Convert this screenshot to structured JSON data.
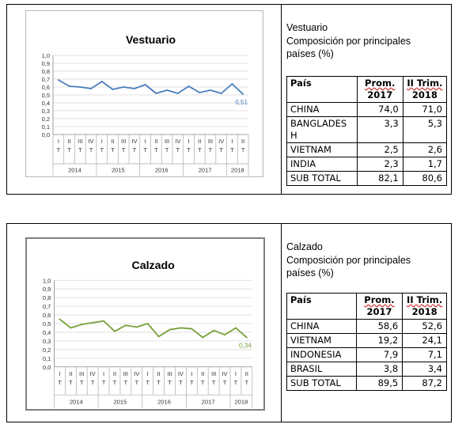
{
  "panels": [
    {
      "info": {
        "line1": "Vestuario",
        "line2": "Composición por principales",
        "line3": "países (%)"
      },
      "table": {
        "headers": [
          "País",
          "Prom. 2017",
          "II Trim. 2018"
        ],
        "header_parts": [
          [
            "País"
          ],
          [
            "Prom.",
            "2017"
          ],
          [
            "II Trim.",
            "2018"
          ]
        ],
        "rows": [
          [
            "CHINA",
            "74,0",
            "71,0"
          ],
          [
            "BANGLADESH",
            "3,3",
            "5,3"
          ],
          [
            "VIETNAM",
            "2,5",
            "2,6"
          ],
          [
            "INDIA",
            "2,3",
            "1,7"
          ],
          [
            "SUB TOTAL",
            "82,1",
            "80,6"
          ]
        ],
        "row_display": [
          [
            "CHINA"
          ],
          [
            "BANGLADES",
            "H"
          ],
          [
            "VIETNAM"
          ],
          [
            "INDIA"
          ],
          [
            "SUB TOTAL"
          ]
        ]
      }
    },
    {
      "info": {
        "line1": "Calzado",
        "line2": "Composición por principales",
        "line3": "países (%)"
      },
      "table": {
        "headers": [
          "País",
          "Prom. 2017",
          "II Trim. 2018"
        ],
        "header_parts": [
          [
            "País"
          ],
          [
            "Prom.",
            "2017"
          ],
          [
            "II Trim.",
            "2018"
          ]
        ],
        "rows": [
          [
            "CHINA",
            "58,6",
            "52,6"
          ],
          [
            "VIETNAM",
            "19,2",
            "24,1"
          ],
          [
            "INDONESIA",
            "7,9",
            "7,1"
          ],
          [
            "BRASIL",
            "3,8",
            "3,4"
          ],
          [
            "SUB TOTAL",
            "89,5",
            "87,2"
          ]
        ],
        "row_display": [
          [
            "CHINA"
          ],
          [
            "VIETNAM"
          ],
          [
            "INDONESIA"
          ],
          [
            "BRASIL"
          ],
          [
            "SUB TOTAL"
          ]
        ]
      }
    }
  ],
  "chart_data": [
    {
      "type": "line",
      "title": "Vestuario",
      "color": "#4a7ebb",
      "ylim": [
        0,
        1
      ],
      "yticks": [
        "0,0",
        "0,1",
        "0,2",
        "0,3",
        "0,4",
        "0,5",
        "0,6",
        "0,7",
        "0,8",
        "0,9",
        "1,0"
      ],
      "quarter_labels": [
        [
          "I",
          "T"
        ],
        [
          "II",
          "T"
        ],
        [
          "III",
          "T"
        ],
        [
          "IV",
          "T"
        ],
        [
          "I",
          "T"
        ],
        [
          "II",
          "T"
        ],
        [
          "III",
          "T"
        ],
        [
          "IV",
          "T"
        ],
        [
          "I",
          "T"
        ],
        [
          "II",
          "T"
        ],
        [
          "III",
          "T"
        ],
        [
          "IV",
          "T"
        ],
        [
          "I",
          "T"
        ],
        [
          "II",
          "T"
        ],
        [
          "III",
          "T"
        ],
        [
          "IV",
          "T"
        ],
        [
          "I",
          "T"
        ],
        [
          "II",
          "T"
        ]
      ],
      "years": [
        {
          "label": "2014",
          "count": 4
        },
        {
          "label": "2015",
          "count": 4
        },
        {
          "label": "2016",
          "count": 4
        },
        {
          "label": "2017",
          "count": 4
        },
        {
          "label": "2018",
          "count": 2
        }
      ],
      "values": [
        0.69,
        0.61,
        0.6,
        0.58,
        0.67,
        0.57,
        0.6,
        0.58,
        0.63,
        0.52,
        0.56,
        0.52,
        0.61,
        0.53,
        0.56,
        0.52,
        0.64,
        0.51
      ],
      "last_label": "0,51",
      "grid": true
    },
    {
      "type": "line",
      "title": "Calzado",
      "color": "#77a13a",
      "ylim": [
        0,
        1
      ],
      "yticks": [
        "0,0",
        "0,1",
        "0,2",
        "0,3",
        "0,4",
        "0,5",
        "0,6",
        "0,7",
        "0,8",
        "0,9",
        "1,0"
      ],
      "quarter_labels": [
        [
          "I",
          "T"
        ],
        [
          "II",
          "T"
        ],
        [
          "III",
          "T"
        ],
        [
          "IV",
          "T"
        ],
        [
          "I",
          "T"
        ],
        [
          "II",
          "T"
        ],
        [
          "III",
          "T"
        ],
        [
          "IV",
          "T"
        ],
        [
          "I",
          "T"
        ],
        [
          "II",
          "T"
        ],
        [
          "III",
          "T"
        ],
        [
          "IV",
          "T"
        ],
        [
          "I",
          "T"
        ],
        [
          "II",
          "T"
        ],
        [
          "III",
          "T"
        ],
        [
          "IV",
          "T"
        ],
        [
          "I",
          "T"
        ],
        [
          "II",
          "T"
        ]
      ],
      "years": [
        {
          "label": "2014",
          "count": 4
        },
        {
          "label": "2015",
          "count": 4
        },
        {
          "label": "2016",
          "count": 4
        },
        {
          "label": "2017",
          "count": 4
        },
        {
          "label": "2018",
          "count": 2
        }
      ],
      "values": [
        0.55,
        0.45,
        0.49,
        0.51,
        0.53,
        0.41,
        0.48,
        0.46,
        0.5,
        0.35,
        0.43,
        0.45,
        0.44,
        0.34,
        0.42,
        0.37,
        0.45,
        0.34
      ],
      "last_label": "0,34",
      "grid": true
    }
  ]
}
